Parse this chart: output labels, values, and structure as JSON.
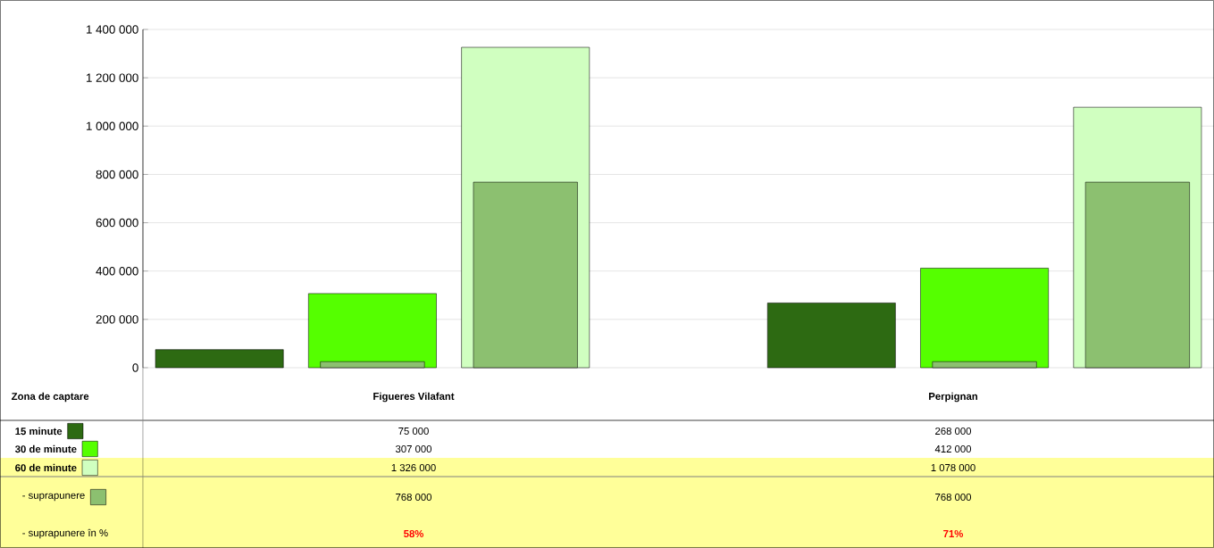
{
  "chart_data": {
    "type": "bar",
    "xlabel": "Zona de captare",
    "categories": [
      "Figueres Vilafant",
      "Perpignan"
    ],
    "series": [
      {
        "name": "15 minute",
        "color": "#2d6a12",
        "values": [
          75000,
          268000
        ],
        "value_labels": [
          "75 000",
          "268 000"
        ]
      },
      {
        "name": "30 de minute",
        "color": "#55ff00",
        "values": [
          307000,
          412000
        ],
        "value_labels": [
          "307 000",
          "412 000"
        ]
      },
      {
        "name": "60 de minute",
        "color": "#d0ffc0",
        "values": [
          1326000,
          1078000
        ],
        "value_labels": [
          "1 326 000",
          "1 078 000"
        ]
      },
      {
        "color": "#8cc070",
        "values": [
          25000,
          25000
        ]
      },
      {
        "name": "- suprapunere",
        "color": "#8cc070",
        "values": [
          768000,
          768000
        ],
        "value_labels": [
          "768 000",
          "768 000"
        ]
      }
    ],
    "ylim": [
      0,
      1400000
    ],
    "yticks": [
      0,
      {
        "value": 200000,
        "label": "200 000"
      },
      {
        "value": 400000,
        "label": "400 000"
      },
      {
        "value": 600000,
        "label": "600 000"
      },
      {
        "value": 800000,
        "label": "800 000"
      },
      {
        "value": 1000000,
        "label": "1 000 000"
      },
      {
        "value": 1200000,
        "label": "1 200 000"
      },
      {
        "value": 1400000,
        "label": "1 400 000"
      }
    ],
    "grid": "y",
    "legend": "bottom",
    "annotations": [
      "- suprapunere în %",
      "58%",
      "71%"
    ]
  }
}
